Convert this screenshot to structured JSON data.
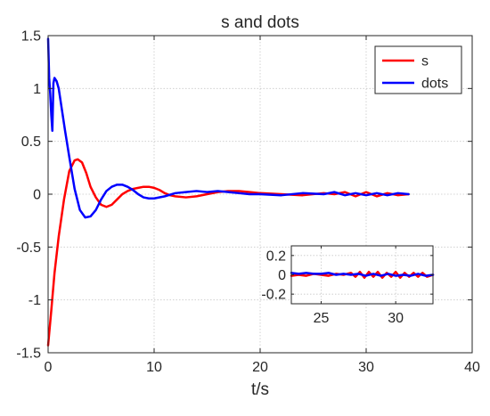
{
  "chart_data": [
    {
      "type": "line",
      "title": "s and dots",
      "xlabel": "t/s",
      "ylabel": "",
      "xlim": [
        0,
        40
      ],
      "ylim": [
        -1.5,
        1.5
      ],
      "xticks": [
        0,
        10,
        20,
        30,
        40
      ],
      "xtick_labels": [
        "0",
        "10",
        "20",
        "30",
        "40"
      ],
      "yticks": [
        -1.5,
        -1,
        -0.5,
        0,
        0.5,
        1,
        1.5
      ],
      "ytick_labels": [
        "-1.5",
        "-1",
        "-0.5",
        "0",
        "0.5",
        "1",
        "1.5"
      ],
      "grid": true,
      "legend_position": "top-right",
      "series": [
        {
          "name": "s",
          "color": "#ff0000",
          "x": [
            0,
            0.3,
            0.6,
            1.0,
            1.5,
            2.0,
            2.5,
            2.8,
            3.2,
            3.6,
            4.0,
            4.5,
            5.0,
            5.5,
            6.0,
            6.5,
            7.0,
            7.5,
            8.0,
            8.5,
            9.0,
            9.5,
            10.0,
            10.5,
            11.0,
            11.5,
            12.0,
            13.0,
            14.0,
            15.0,
            16.0,
            17.0,
            18.0,
            19.0,
            20.0,
            22.0,
            24.0,
            26.0,
            27.0,
            28.0,
            29.0,
            30.0,
            31.0,
            32.0,
            33.0,
            34.0
          ],
          "y": [
            -1.43,
            -1.1,
            -0.75,
            -0.4,
            -0.05,
            0.22,
            0.32,
            0.33,
            0.3,
            0.2,
            0.07,
            -0.03,
            -0.1,
            -0.12,
            -0.1,
            -0.05,
            0.0,
            0.03,
            0.05,
            0.06,
            0.07,
            0.07,
            0.06,
            0.04,
            0.01,
            -0.01,
            -0.02,
            -0.03,
            -0.02,
            0.0,
            0.02,
            0.03,
            0.03,
            0.02,
            0.01,
            0.0,
            -0.01,
            0.01,
            0.0,
            0.02,
            -0.02,
            0.02,
            -0.02,
            0.01,
            -0.01,
            0.0
          ]
        },
        {
          "name": "dots",
          "color": "#0000ff",
          "x": [
            0,
            0.1,
            0.2,
            0.3,
            0.4,
            0.5,
            0.6,
            0.8,
            1.0,
            1.3,
            1.6,
            2.0,
            2.5,
            3.0,
            3.5,
            4.0,
            4.5,
            5.0,
            5.5,
            6.0,
            6.5,
            7.0,
            7.5,
            8.0,
            8.5,
            9.0,
            9.5,
            10.0,
            11.0,
            12.0,
            13.0,
            14.0,
            15.0,
            16.0,
            17.0,
            18.0,
            19.0,
            20.0,
            22.0,
            24.0,
            26.0,
            27.0,
            28.0,
            29.0,
            30.0,
            31.0,
            32.0,
            33.0,
            34.0
          ],
          "y": [
            1.47,
            1.1,
            0.95,
            0.75,
            0.6,
            1.05,
            1.1,
            1.07,
            1.0,
            0.8,
            0.6,
            0.35,
            0.05,
            -0.15,
            -0.22,
            -0.21,
            -0.15,
            -0.05,
            0.03,
            0.07,
            0.09,
            0.09,
            0.07,
            0.04,
            0.0,
            -0.03,
            -0.04,
            -0.04,
            -0.02,
            0.01,
            0.02,
            0.03,
            0.02,
            0.03,
            0.02,
            0.01,
            0.0,
            0.0,
            -0.01,
            0.01,
            0.0,
            0.02,
            -0.01,
            0.01,
            -0.01,
            0.01,
            -0.01,
            0.01,
            0.0
          ]
        }
      ]
    },
    {
      "type": "line",
      "title": "",
      "xlabel": "",
      "ylabel": "",
      "xlim": [
        23,
        32.5
      ],
      "ylim": [
        -0.3,
        0.3
      ],
      "xticks": [
        25,
        30
      ],
      "xtick_labels": [
        "25",
        "30"
      ],
      "yticks": [
        -0.2,
        0,
        0.2
      ],
      "ytick_labels": [
        "-0.2",
        "0",
        "0.2"
      ],
      "grid": true,
      "series": [
        {
          "color": "#ff0000",
          "x": [
            23,
            23.5,
            24,
            24.5,
            25,
            25.5,
            26,
            26.5,
            27,
            27.3,
            27.6,
            27.9,
            28.2,
            28.5,
            28.8,
            29.1,
            29.4,
            29.7,
            30,
            30.3,
            30.6,
            30.9,
            31.2,
            31.5,
            31.8,
            32.1,
            32.5
          ],
          "y": [
            -0.01,
            0.0,
            -0.01,
            0.01,
            0.0,
            -0.01,
            0.01,
            0.0,
            0.02,
            -0.02,
            0.03,
            -0.03,
            0.03,
            -0.02,
            0.03,
            -0.03,
            0.02,
            -0.02,
            0.03,
            -0.03,
            0.02,
            -0.02,
            0.02,
            -0.02,
            0.02,
            -0.02,
            0.0
          ]
        },
        {
          "color": "#0000ff",
          "x": [
            23,
            23.5,
            24,
            24.5,
            25,
            25.5,
            26,
            26.5,
            27,
            27.5,
            28,
            28.5,
            29,
            29.5,
            30,
            30.5,
            31,
            31.5,
            32,
            32.5
          ],
          "y": [
            0.02,
            0.01,
            0.02,
            0.01,
            0.01,
            0.02,
            0.0,
            0.01,
            0.0,
            0.01,
            -0.01,
            0.01,
            -0.01,
            0.01,
            -0.01,
            0.0,
            -0.01,
            0.01,
            -0.01,
            0.0
          ]
        }
      ]
    }
  ]
}
